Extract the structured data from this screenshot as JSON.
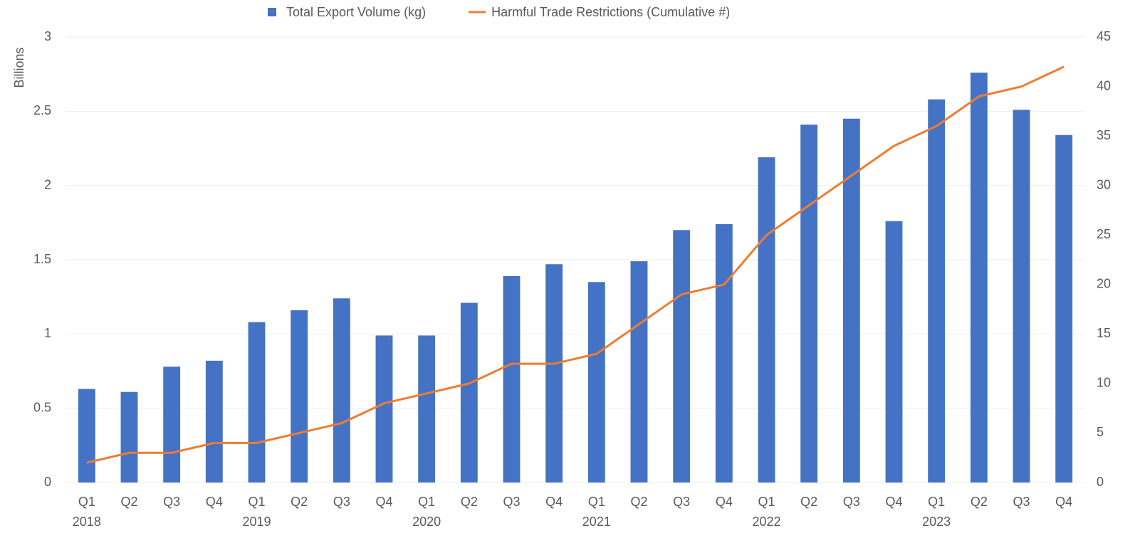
{
  "chart_data": {
    "type": "bar_line",
    "y_axis_label": "Billions",
    "categories": [
      "Q1",
      "Q2",
      "Q3",
      "Q4",
      "Q1",
      "Q2",
      "Q3",
      "Q4",
      "Q1",
      "Q2",
      "Q3",
      "Q4",
      "Q1",
      "Q2",
      "Q3",
      "Q4",
      "Q1",
      "Q2",
      "Q3",
      "Q4",
      "Q1",
      "Q2",
      "Q3",
      "Q4"
    ],
    "year_labels": [
      "2018",
      null,
      null,
      null,
      "2019",
      null,
      null,
      null,
      "2020",
      null,
      null,
      null,
      "2021",
      null,
      null,
      null,
      "2022",
      null,
      null,
      null,
      "2023",
      null,
      null,
      null
    ],
    "series": [
      {
        "name": "Total Export Volume (kg)",
        "type": "bar",
        "color": "#4472c4",
        "values": [
          0.63,
          0.61,
          0.78,
          0.82,
          1.08,
          1.16,
          1.24,
          0.99,
          0.99,
          1.21,
          1.39,
          1.47,
          1.35,
          1.49,
          1.7,
          1.74,
          2.19,
          2.41,
          2.45,
          1.76,
          2.58,
          2.76,
          2.51,
          2.34
        ]
      },
      {
        "name": "Harmful Trade Restrictions (Cumulative #)",
        "type": "line",
        "axis": "y2",
        "color": "#ed7d31",
        "values": [
          2,
          3,
          3,
          4,
          4,
          5,
          6,
          8,
          9,
          10,
          12,
          12,
          13,
          16,
          19,
          20,
          25,
          28,
          31,
          34,
          36,
          39,
          40,
          42
        ]
      }
    ],
    "ylim": [
      0,
      3
    ],
    "yticks": [
      0,
      0.5,
      1,
      1.5,
      2,
      2.5,
      3
    ],
    "y2lim": [
      0,
      45
    ],
    "y2ticks": [
      0,
      5,
      10,
      15,
      20,
      25,
      30,
      35,
      40,
      45
    ],
    "grid": true,
    "legend": "top"
  }
}
